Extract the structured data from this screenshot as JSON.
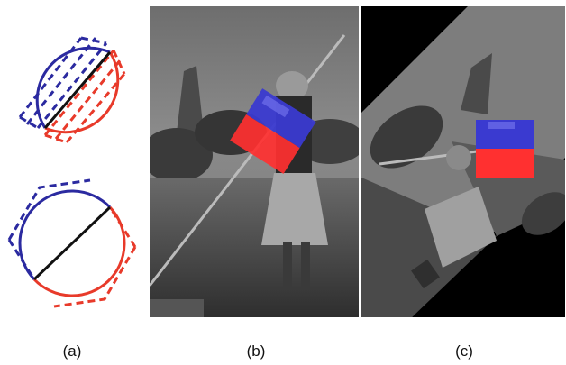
{
  "figure": {
    "captions": {
      "a": "(a)",
      "b": "(b)",
      "c": "(c)"
    }
  },
  "colors": {
    "blue": "#2b2aa0",
    "red": "#e83a2a",
    "blue_patch": "#3a3ad0",
    "red_patch": "#ff3030",
    "axis": "#111111"
  },
  "panels": {
    "a_top": {
      "description_icon": "circle-split-icon",
      "bisector": "diagonal-45deg"
    },
    "a_bottom": {
      "description_icon": "circle-split-rotated-icon",
      "bisector": "diagonal-45deg"
    },
    "b": {
      "photo_icon": "photo-dancer-icon",
      "overlay": "rotated-two-tone-patch"
    },
    "c": {
      "photo_icon": "photo-dancer-rotated-icon",
      "overlay": "axis-aligned-two-tone-patch"
    }
  }
}
